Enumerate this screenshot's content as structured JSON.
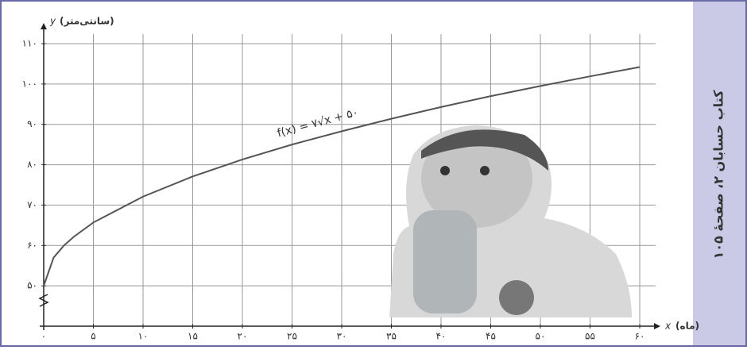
{
  "chart_data": {
    "type": "line",
    "x_label": "(ماه)",
    "x_var": "x",
    "y_label": "(سانتی‌متر)",
    "y_var": "y",
    "annotation": "f(x) = ۷√x + ۵۰",
    "x": [
      0,
      1,
      2,
      3,
      5,
      10,
      15,
      20,
      25,
      30,
      35,
      40,
      45,
      50,
      55,
      60
    ],
    "series": [
      {
        "color": "#555555",
        "values": [
          50,
          57,
          59.9,
          62.1,
          65.7,
          72.1,
          77.1,
          81.3,
          85,
          88.3,
          91.4,
          94.3,
          97,
          99.5,
          101.9,
          104.2
        ]
      }
    ],
    "xlim": [
      0,
      60
    ],
    "xticks": [
      {
        "value": 0,
        "label": "۰"
      },
      {
        "value": 5,
        "label": "۵"
      },
      {
        "value": 10,
        "label": "۱۰"
      },
      {
        "value": 15,
        "label": "۱۵"
      },
      {
        "value": 20,
        "label": "۲۰"
      },
      {
        "value": 25,
        "label": "۲۵"
      },
      {
        "value": 30,
        "label": "۳۰"
      },
      {
        "value": 35,
        "label": "۳۵"
      },
      {
        "value": 40,
        "label": "۴۰"
      },
      {
        "value": 45,
        "label": "۴۵"
      },
      {
        "value": 50,
        "label": "۵۰"
      },
      {
        "value": 55,
        "label": "۵۵"
      },
      {
        "value": 60,
        "label": "۶۰"
      }
    ],
    "ylim": [
      40,
      110
    ],
    "yticks": [
      {
        "value": 50,
        "label": "۵۰"
      },
      {
        "value": 60,
        "label": "۶۰"
      },
      {
        "value": 70,
        "label": "۷۰"
      },
      {
        "value": 80,
        "label": "۸۰"
      },
      {
        "value": 90,
        "label": "۹۰"
      },
      {
        "value": 100,
        "label": "۱۰۰"
      },
      {
        "value": 110,
        "label": "۱۱۰"
      }
    ],
    "grid": true
  },
  "side_note": "کتاب حسابان ۲، صفحهٔ ۱۰۵"
}
